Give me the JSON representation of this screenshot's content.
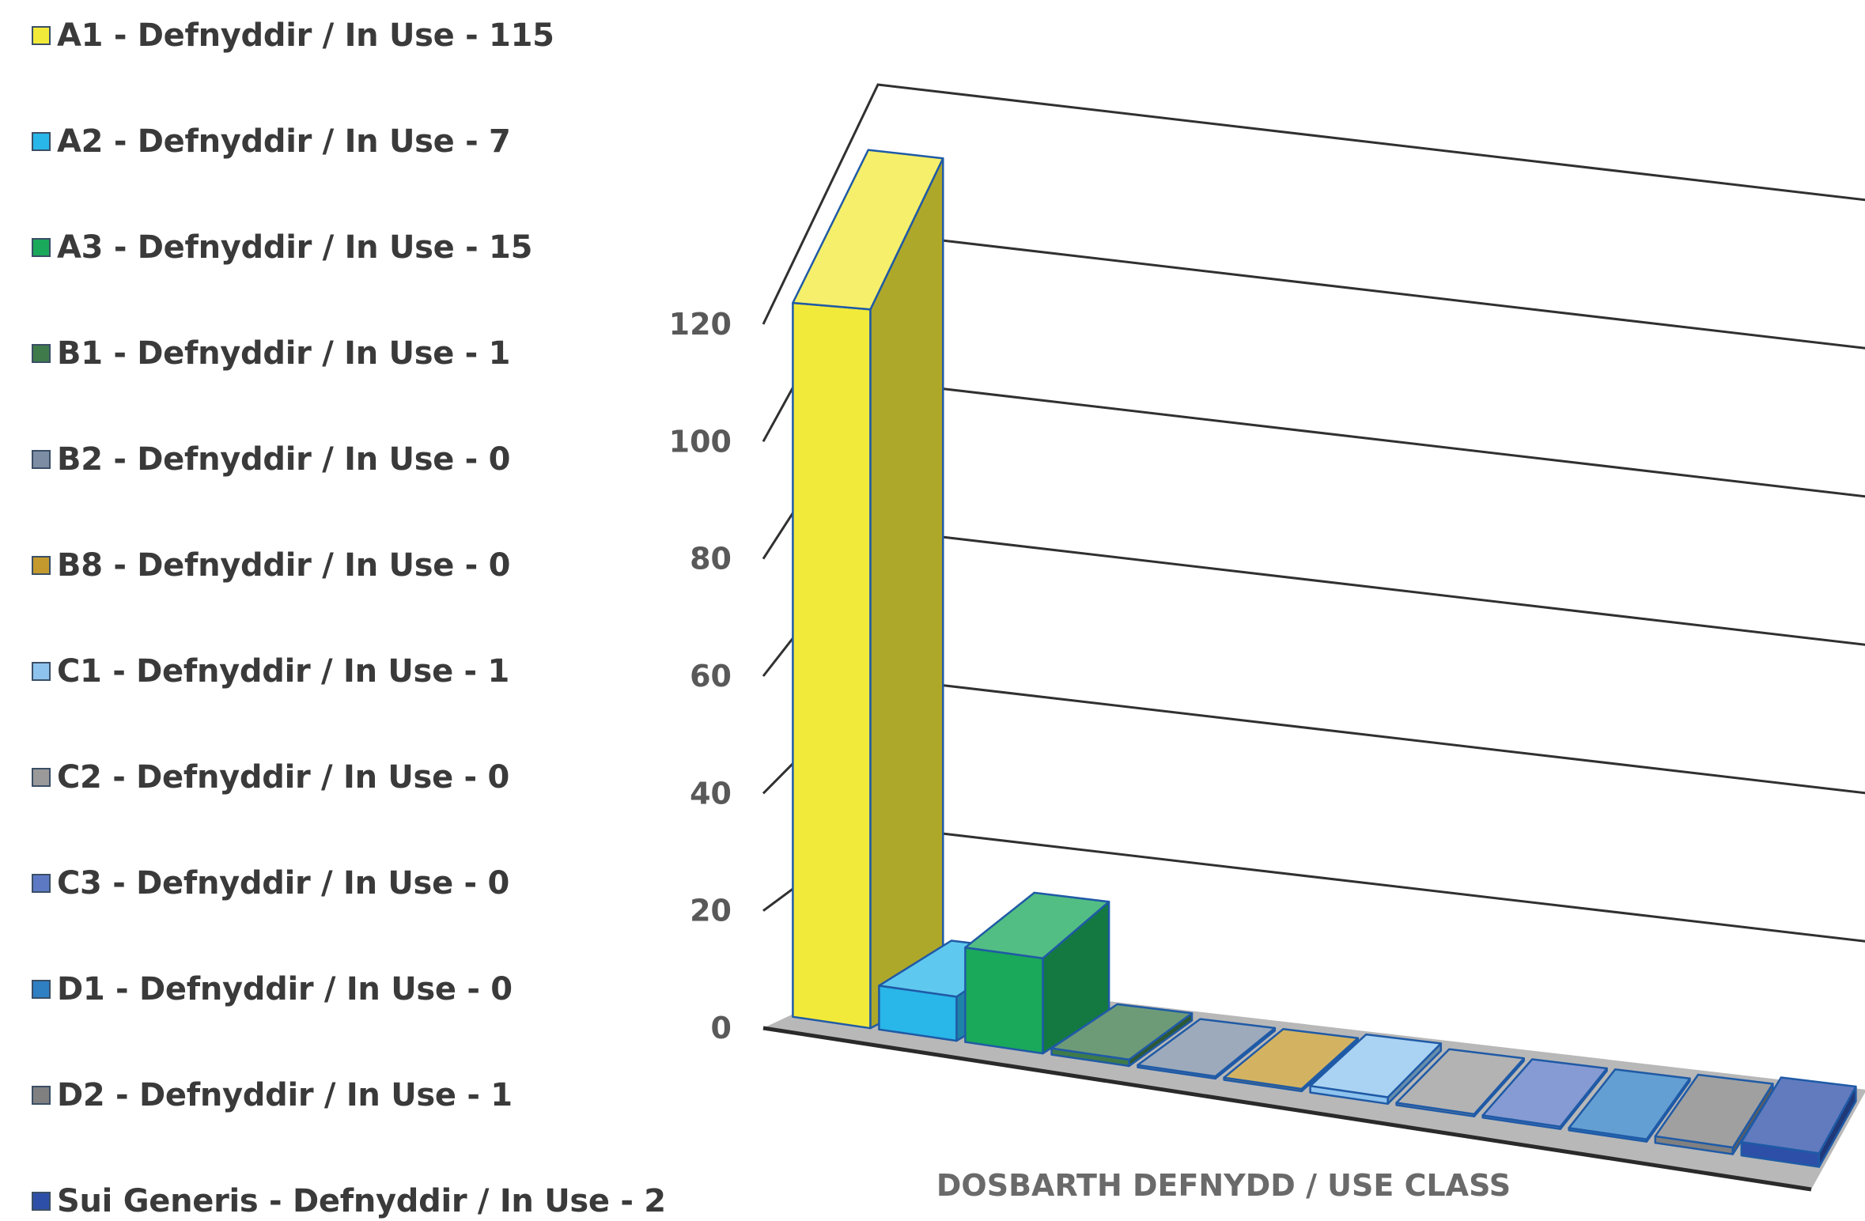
{
  "chart_data": {
    "type": "bar",
    "xlabel": "DOSBARTH DEFNYDD / USE CLASS",
    "ylabel": "",
    "ylim": [
      0,
      120
    ],
    "y_ticks": [
      0,
      20,
      40,
      60,
      80,
      100,
      120
    ],
    "grid": true,
    "legend_placement": "left",
    "categories": [
      "A1",
      "A2",
      "A3",
      "B1",
      "B2",
      "B8",
      "C1",
      "C2",
      "C3",
      "D1",
      "D2",
      "Sui Generis"
    ],
    "values": [
      115,
      7,
      15,
      1,
      0,
      0,
      1,
      0,
      0,
      0,
      1,
      2
    ],
    "colors": [
      "#f2ea3a",
      "#29b6e8",
      "#1aa85a",
      "#3e7a4a",
      "#7c8da4",
      "#c49a2e",
      "#8ec3ee",
      "#9a9a9a",
      "#5d79c4",
      "#2f7fc3",
      "#808080",
      "#2d4fa8"
    ],
    "legend": [
      "A1 - Defnyddir / In Use -  115",
      "A2 - Defnyddir / In Use - 7",
      "A3 - Defnyddir / In Use - 15",
      "B1 - Defnyddir / In Use - 1",
      "B2 - Defnyddir / In Use - 0",
      "B8 - Defnyddir / In Use - 0",
      "C1 - Defnyddir / In Use - 1",
      "C2 - Defnyddir / In Use - 0",
      "C3 - Defnyddir / In Use - 0",
      "D1 - Defnyddir / In Use - 0",
      "D2 - Defnyddir / In Use - 1",
      "Sui Generis - Defnyddir / In Use - 2"
    ]
  }
}
